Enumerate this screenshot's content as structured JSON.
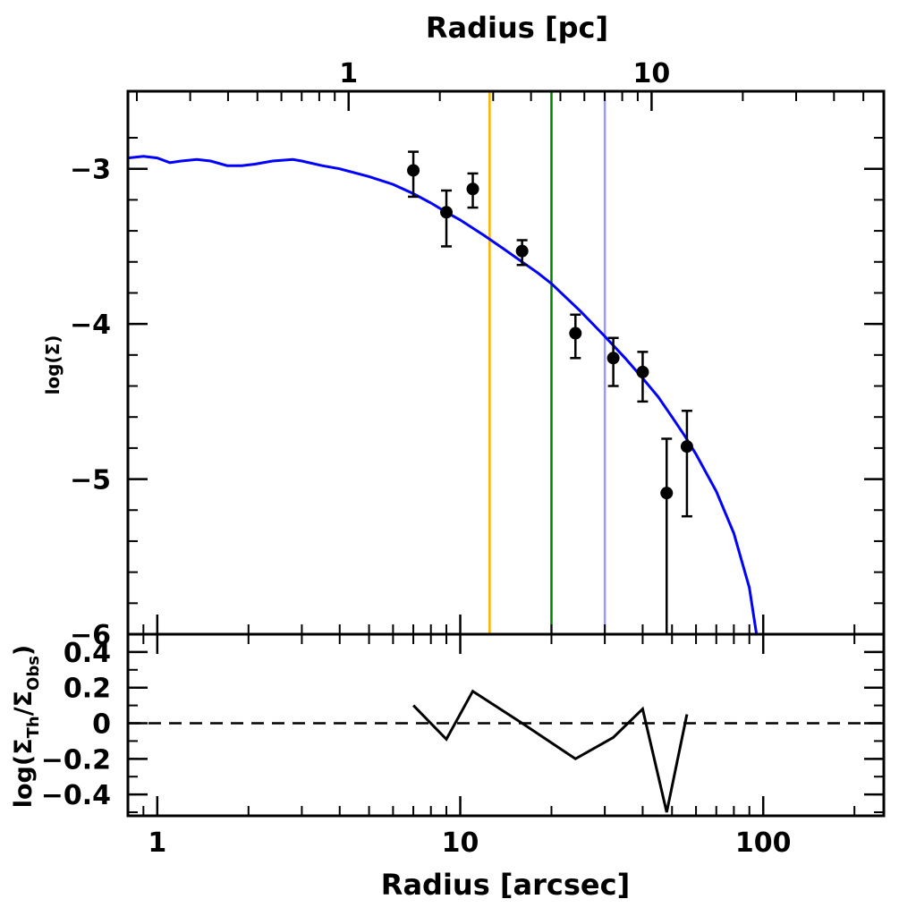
{
  "chart_data": {
    "type": "scatter",
    "top_axis": {
      "label": "Radius [pc]",
      "ticks": [
        {
          "value": 1,
          "label": "1"
        },
        {
          "value": 10,
          "label": "10"
        }
      ],
      "pc_per_arcsec": 0.2336
    },
    "xlabel": "Radius [arcsec]",
    "x_scale": "log",
    "xlim": [
      0.8,
      250
    ],
    "x_ticks": [
      {
        "value": 1,
        "label": "1"
      },
      {
        "value": 10,
        "label": "10"
      },
      {
        "value": 100,
        "label": "100"
      }
    ],
    "upper_panel": {
      "ylabel": "log(Σ)",
      "ylim": [
        -6,
        -2.5
      ],
      "y_ticks": [
        {
          "value": -3,
          "label": "−3"
        },
        {
          "value": -4,
          "label": "−4"
        },
        {
          "value": -5,
          "label": "−5"
        },
        {
          "value": -6,
          "label": "−6"
        }
      ],
      "model_curve": {
        "color": "#0000ff",
        "x": [
          0.8,
          0.9,
          1.0,
          1.1,
          1.2,
          1.35,
          1.5,
          1.7,
          1.9,
          2.1,
          2.4,
          2.8,
          3.0,
          3.5,
          4.0,
          5.0,
          6.0,
          7.0,
          8.0,
          9.0,
          10.0,
          12.0,
          14.0,
          16.0,
          18.0,
          20.0,
          25.0,
          30.0,
          35.0,
          40.0,
          45.0,
          50.0,
          55.0,
          60.0,
          70.0,
          80.0,
          90.0,
          95.0
        ],
        "y": [
          -2.93,
          -2.92,
          -2.93,
          -2.96,
          -2.95,
          -2.94,
          -2.95,
          -2.98,
          -2.98,
          -2.97,
          -2.95,
          -2.94,
          -2.95,
          -2.98,
          -3.0,
          -3.05,
          -3.1,
          -3.16,
          -3.22,
          -3.28,
          -3.33,
          -3.43,
          -3.52,
          -3.6,
          -3.67,
          -3.74,
          -3.92,
          -4.08,
          -4.22,
          -4.35,
          -4.47,
          -4.6,
          -4.72,
          -4.84,
          -5.08,
          -5.35,
          -5.7,
          -6.0
        ]
      },
      "data_points": {
        "color": "#000000",
        "x": [
          7.0,
          9.0,
          11.0,
          16.0,
          24.0,
          32.0,
          40.0,
          48.0,
          56.0
        ],
        "y": [
          -3.01,
          -3.28,
          -3.13,
          -3.53,
          -4.06,
          -4.22,
          -4.31,
          -5.09,
          -4.79
        ],
        "err_low": [
          0.17,
          0.22,
          0.12,
          0.09,
          0.16,
          0.18,
          0.19,
          0.95,
          0.45
        ],
        "err_high": [
          0.12,
          0.14,
          0.1,
          0.07,
          0.12,
          0.13,
          0.13,
          0.35,
          0.23
        ]
      },
      "vertical_lines": [
        {
          "x": 12.5,
          "color": "#ffb300"
        },
        {
          "x": 20.0,
          "color": "#008000"
        },
        {
          "x": 30.0,
          "color": "#9999ff"
        }
      ]
    },
    "lower_panel": {
      "ylabel_prefix": "log(Σ",
      "ylabel_sub1": "Th",
      "ylabel_mid": "/Σ",
      "ylabel_sub2": "Obs",
      "ylabel_suffix": ")",
      "ylim": [
        -0.52,
        0.5
      ],
      "y_ticks": [
        {
          "value": 0.4,
          "label": "0.4"
        },
        {
          "value": 0.2,
          "label": "0.2"
        },
        {
          "value": 0,
          "label": "0"
        },
        {
          "value": -0.2,
          "label": "−0.2"
        },
        {
          "value": -0.4,
          "label": "−0.4"
        }
      ],
      "residual_line": {
        "x": [
          7.0,
          9.0,
          11.0,
          16.0,
          24.0,
          32.0,
          40.0,
          48.0,
          56.0
        ],
        "y": [
          0.1,
          -0.09,
          0.18,
          0.0,
          -0.2,
          -0.08,
          0.08,
          -0.5,
          0.05
        ]
      },
      "zero_line": {
        "y": 0,
        "style": "dashed"
      }
    }
  }
}
